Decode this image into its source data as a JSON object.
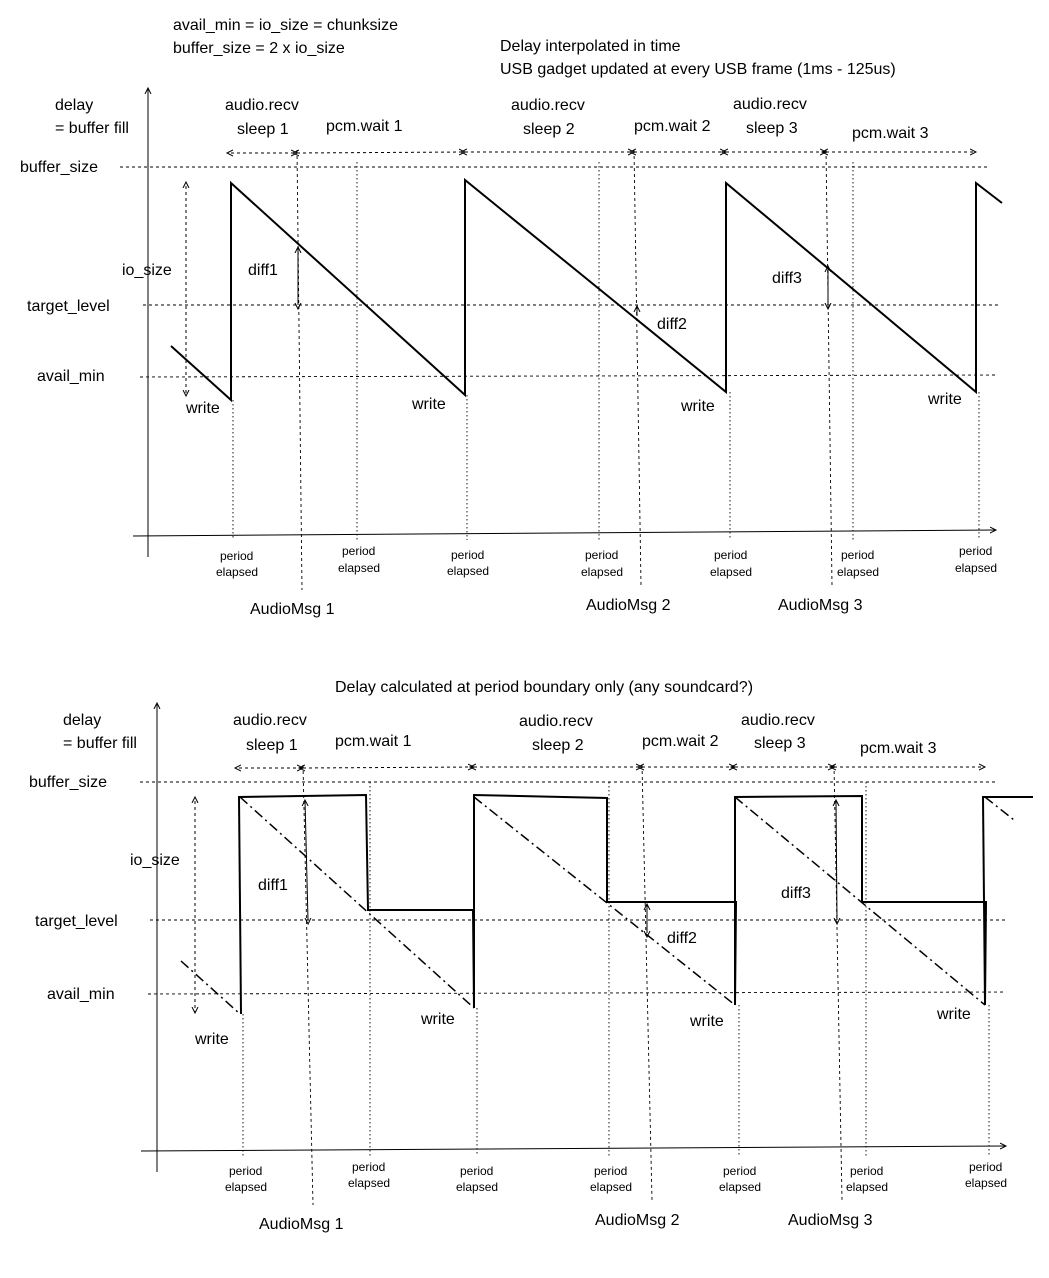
{
  "header": {
    "line1": "avail_min = io_size = chunksize",
    "line2": "buffer_size = 2 x io_size",
    "note1": "Delay interpolated in time",
    "note2": "USB gadget updated at every USB frame (1ms - 125us)"
  },
  "diagram2_title": "Delay calculated at period boundary only (any soundcard?)",
  "labels": {
    "delay": "delay",
    "buffer_fill": "= buffer fill",
    "buffer_size": "buffer_size",
    "io_size": "io_size",
    "target_level": "target_level",
    "avail_min": "avail_min",
    "write": "write",
    "audio_recv": "audio.recv",
    "period": "period",
    "elapsed": "elapsed"
  },
  "sleeps": [
    "sleep 1",
    "sleep 2",
    "sleep 3"
  ],
  "pcm_waits": [
    "pcm.wait 1",
    "pcm.wait 2",
    "pcm.wait 3"
  ],
  "diffs": [
    "diff1",
    "diff2",
    "diff3"
  ],
  "audio_msgs": [
    "AudioMsg 1",
    "AudioMsg 2",
    "AudioMsg 3"
  ]
}
